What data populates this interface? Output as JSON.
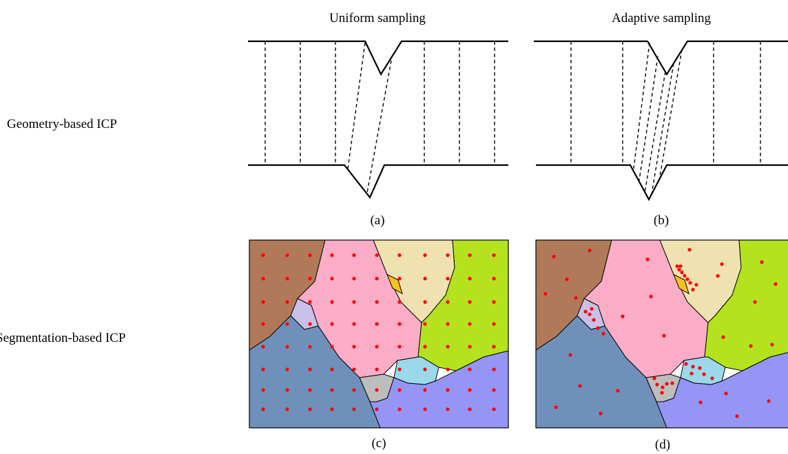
{
  "column_titles": [
    "Uniform sampling",
    "Adaptive sampling"
  ],
  "row_labels": [
    "Geometry-based ICP",
    "Segmentation-based ICP"
  ],
  "panel_labels": [
    "(a)",
    "(b)",
    "(c)",
    "(d)"
  ]
}
